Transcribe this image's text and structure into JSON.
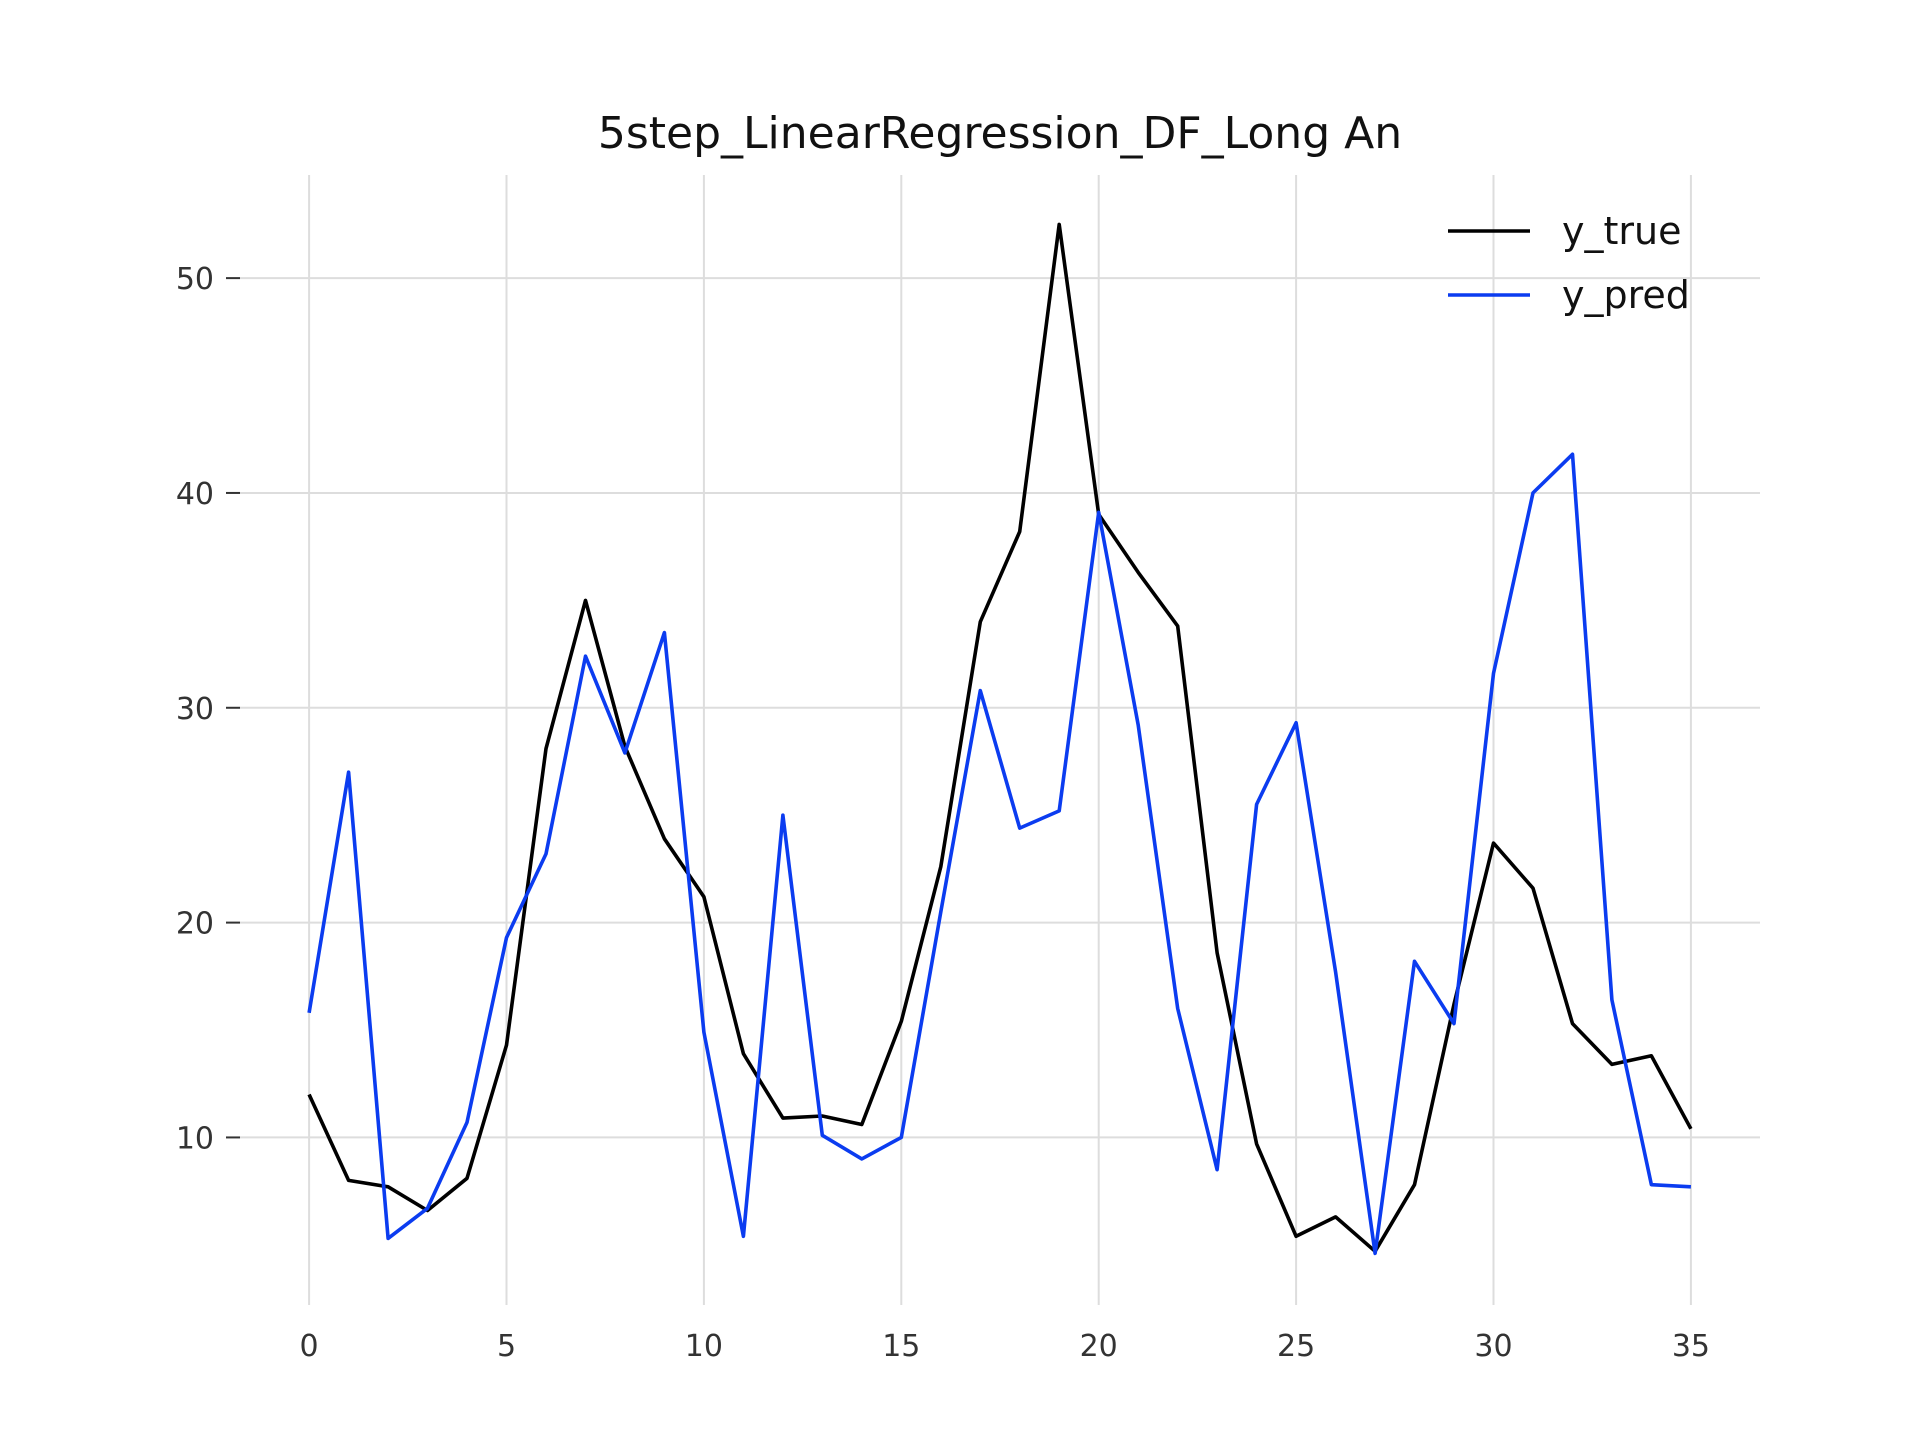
{
  "chart_data": {
    "type": "line",
    "title": "5step_LinearRegression_DF_Long An",
    "xlabel": "",
    "ylabel": "",
    "x": [
      0,
      1,
      2,
      3,
      4,
      5,
      6,
      7,
      8,
      9,
      10,
      11,
      12,
      13,
      14,
      15,
      16,
      17,
      18,
      19,
      20,
      21,
      22,
      23,
      24,
      25,
      26,
      27,
      28,
      29,
      30,
      31,
      32,
      33,
      34,
      35
    ],
    "series": [
      {
        "name": "y_true",
        "color": "#000000",
        "values": [
          12.0,
          8.0,
          7.7,
          6.6,
          8.1,
          14.3,
          28.1,
          35.0,
          28.2,
          23.9,
          21.2,
          13.9,
          10.9,
          11.0,
          10.6,
          15.4,
          22.6,
          34.0,
          38.2,
          52.5,
          39.0,
          36.3,
          33.8,
          18.6,
          9.7,
          5.4,
          6.3,
          4.7,
          7.8,
          16.2,
          23.7,
          21.6,
          15.3,
          13.4,
          13.8,
          10.4
        ]
      },
      {
        "name": "y_pred",
        "color": "#0b3cf0",
        "values": [
          15.8,
          27.0,
          5.3,
          6.7,
          10.7,
          19.3,
          23.2,
          32.4,
          27.9,
          33.5,
          14.9,
          5.4,
          25.0,
          10.1,
          9.0,
          10.0,
          20.5,
          30.8,
          24.4,
          25.2,
          39.1,
          29.2,
          16.0,
          8.5,
          25.5,
          29.3,
          17.7,
          4.6,
          18.2,
          15.3,
          31.6,
          40.0,
          41.8,
          16.4,
          7.8,
          7.7
        ]
      }
    ],
    "xticks": [
      0,
      5,
      10,
      15,
      20,
      25,
      30,
      35
    ],
    "yticks": [
      10,
      20,
      30,
      40,
      50
    ],
    "xlim": [
      -1.75,
      36.75
    ],
    "ylim": [
      2.2,
      54.8
    ],
    "grid": true,
    "legend_position": "top-right"
  }
}
